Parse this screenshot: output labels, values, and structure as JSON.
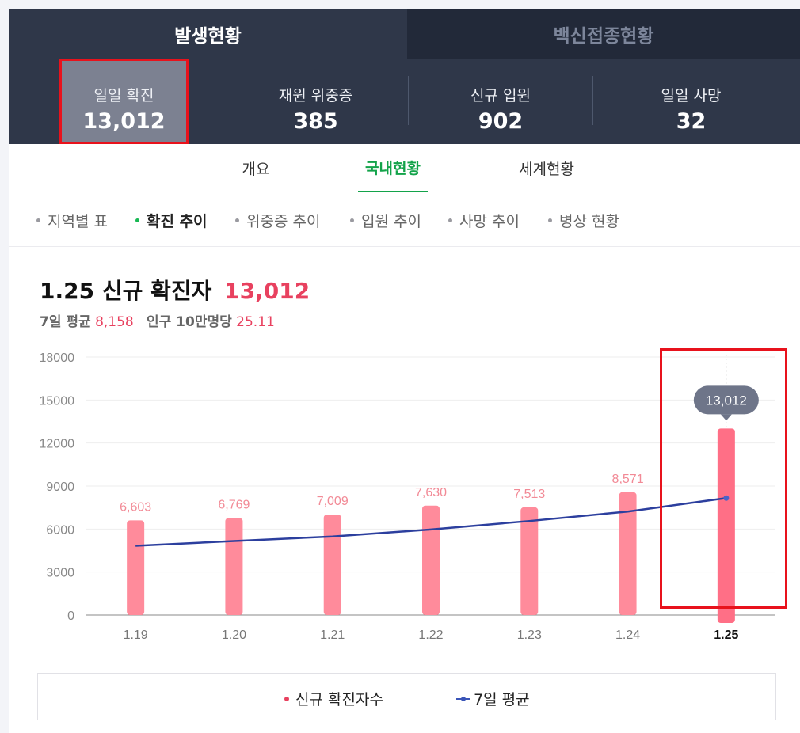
{
  "top_tabs": {
    "active": "발생현황",
    "inactive": "백신접종현황"
  },
  "stats": [
    {
      "label": "일일 확진",
      "value": "13,012"
    },
    {
      "label": "재원 위중증",
      "value": "385"
    },
    {
      "label": "신규 입원",
      "value": "902"
    },
    {
      "label": "일일 사망",
      "value": "32"
    }
  ],
  "sub_tabs": [
    "개요",
    "국내현황",
    "세계현황"
  ],
  "categories": [
    "지역별 표",
    "확진 추이",
    "위중증 추이",
    "입원 추이",
    "사망 추이",
    "병상 현황"
  ],
  "heading": {
    "date": "1.25",
    "title": "신규 확진자",
    "value": "13,012",
    "avg_label": "7일 평균",
    "avg_value": "8,158",
    "per_label": "인구 10만명당",
    "per_value": "25.11"
  },
  "chart_data": {
    "type": "bar",
    "categories": [
      "1.19",
      "1.20",
      "1.21",
      "1.22",
      "1.23",
      "1.24",
      "1.25"
    ],
    "series": [
      {
        "name": "신규 확진자수",
        "type": "bar",
        "values": [
          6603,
          6769,
          7009,
          7630,
          7513,
          8571,
          13012
        ],
        "labels": [
          "6,603",
          "6,769",
          "7,009",
          "7,630",
          "7,513",
          "8,571",
          "13,012"
        ]
      },
      {
        "name": "7일 평균",
        "type": "line",
        "values": [
          4830,
          5160,
          5480,
          5970,
          6560,
          7220,
          8158
        ]
      }
    ],
    "ylim": [
      0,
      18000
    ],
    "yticks": [
      0,
      3000,
      6000,
      9000,
      12000,
      15000,
      18000
    ],
    "ytick_labels": [
      "0",
      "3000",
      "6000",
      "9000",
      "12000",
      "15000",
      "18000"
    ],
    "highlight_category": "1.25",
    "bar_color": "#ff8b9b",
    "highlight_bar_color": "#ff6f86",
    "line_color": "#2c3f9e",
    "tooltip_color": "#6e7589",
    "grid": true
  },
  "legend": {
    "bar": "신규 확진자수",
    "line": "7일 평균"
  }
}
